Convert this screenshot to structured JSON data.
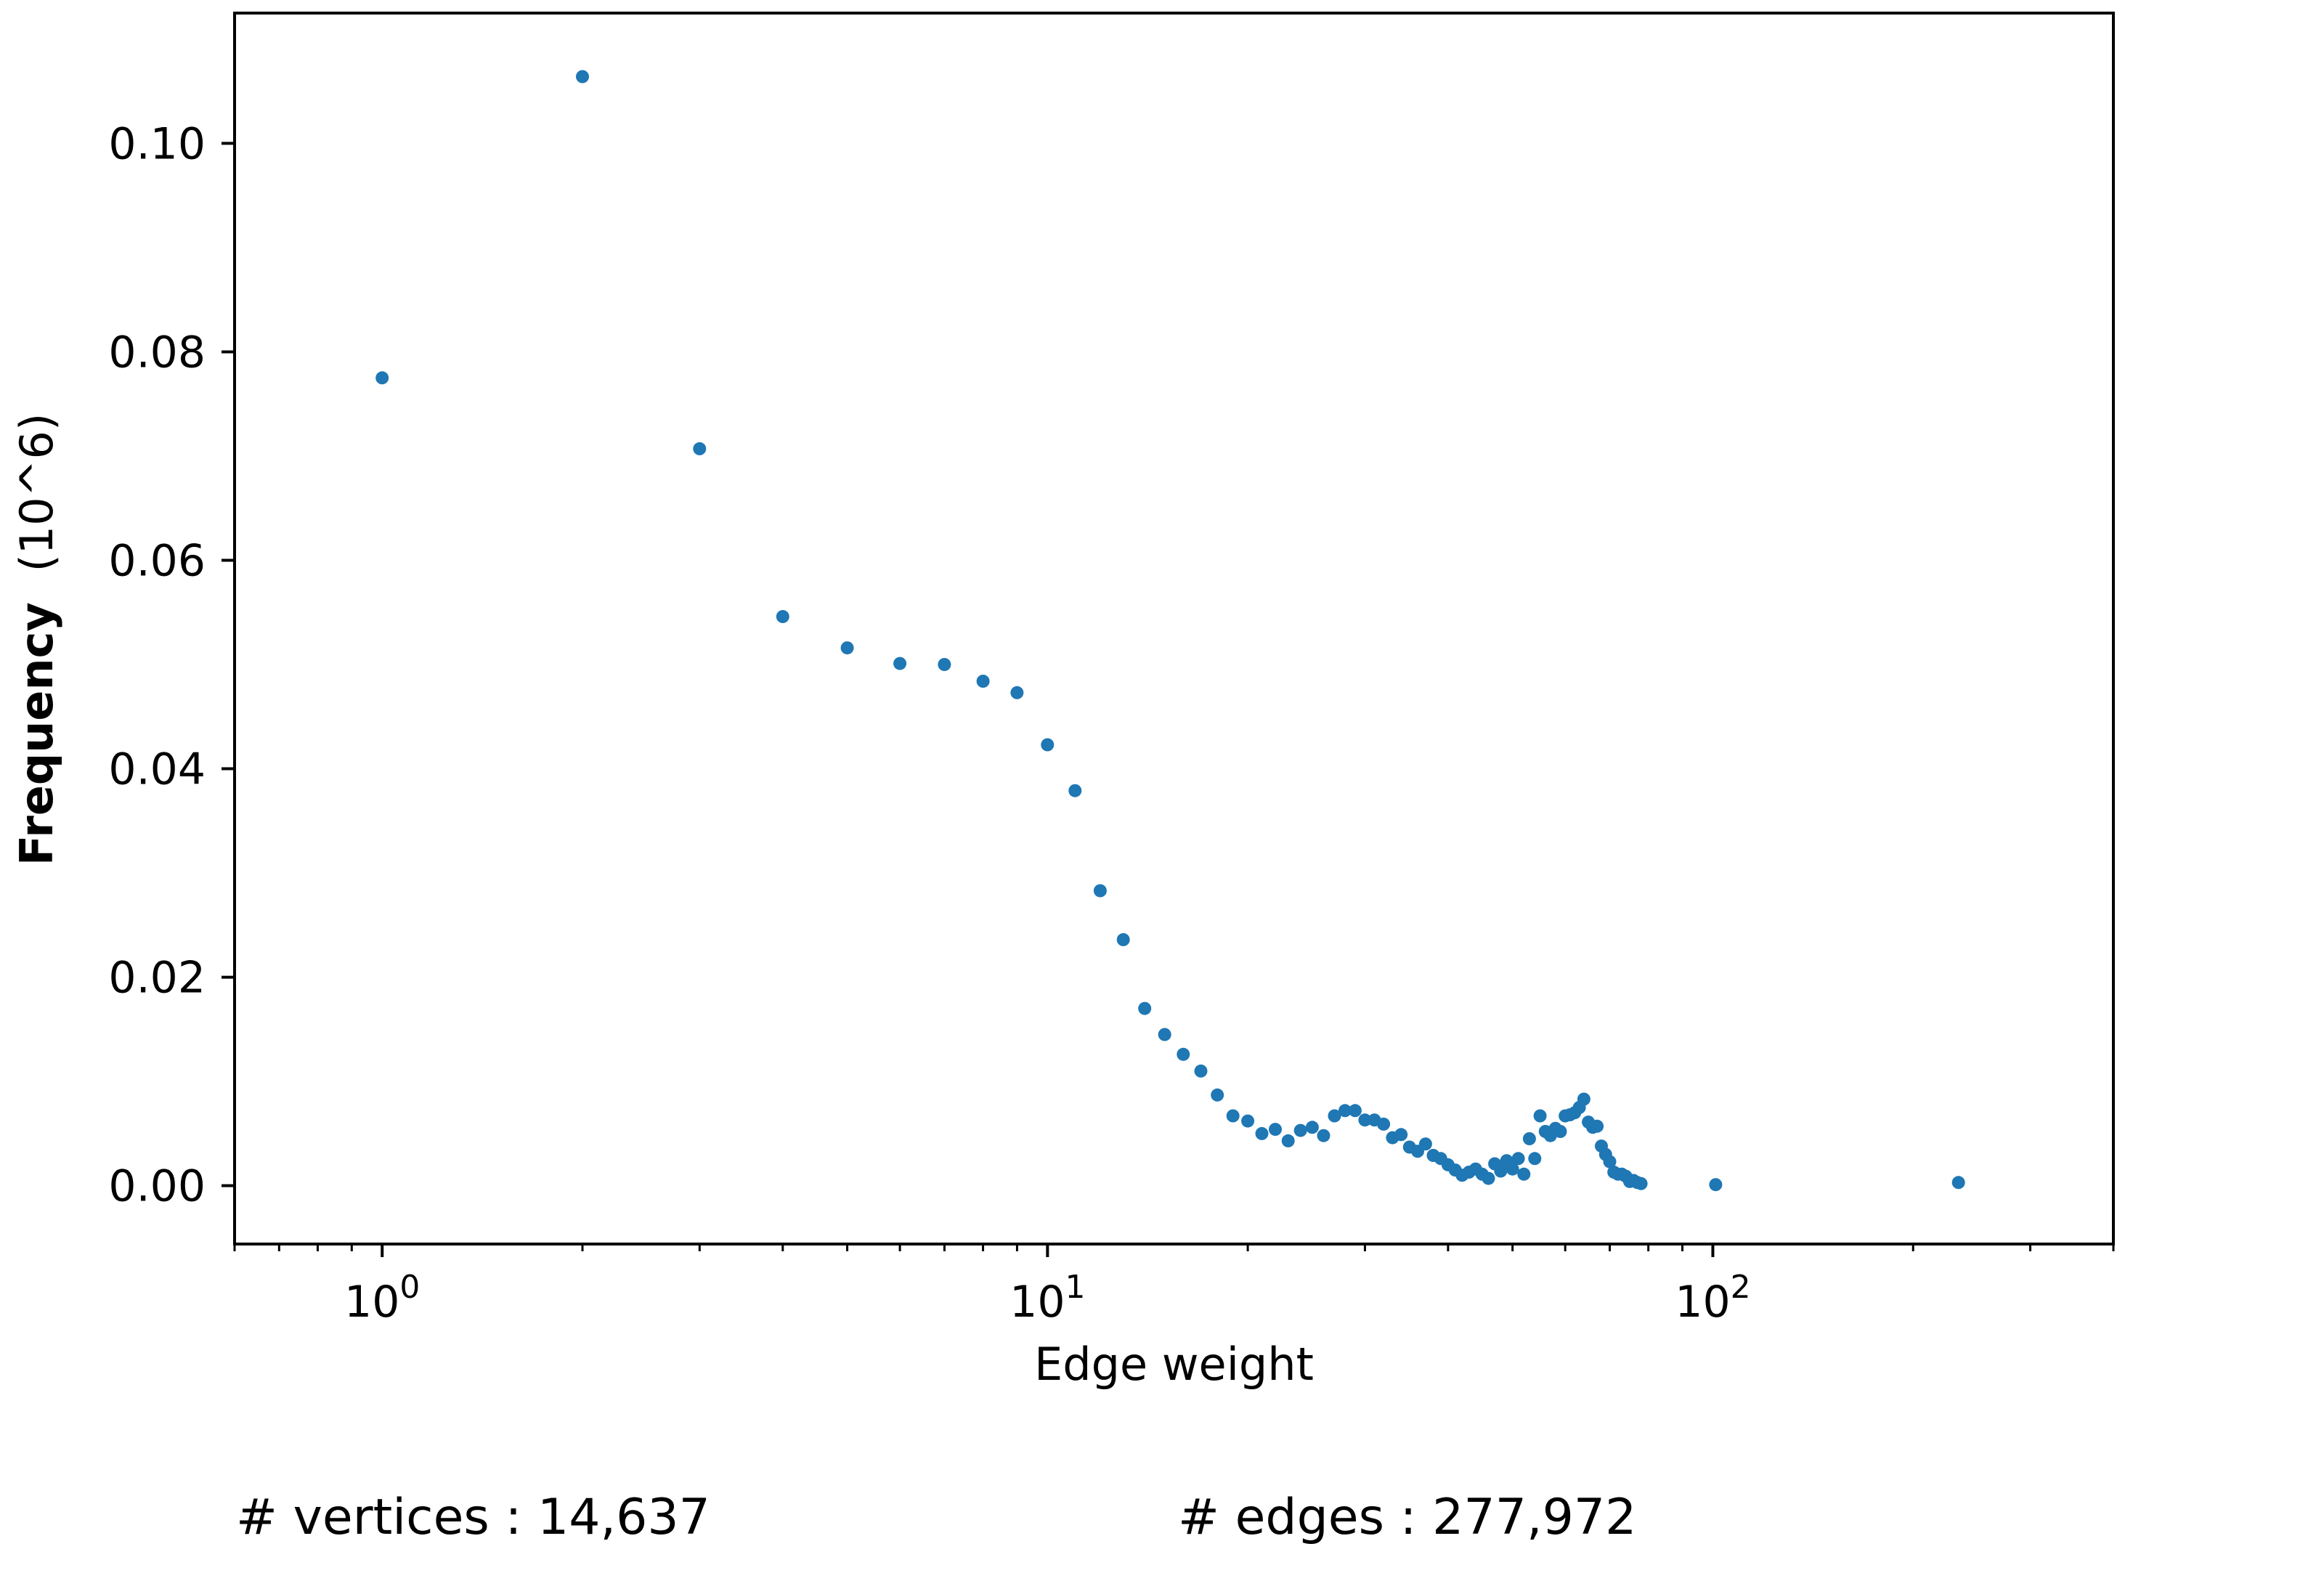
{
  "chart_data": {
    "type": "scatter",
    "title": "",
    "xlabel": "Edge weight",
    "ylabel": "Frequency",
    "ylabel_unit": "(10^6)",
    "x_scale": "log",
    "xlim": [
      0.6,
      400
    ],
    "ylim": [
      -0.0056,
      0.1125
    ],
    "y_ticks": [
      0.0,
      0.02,
      0.04,
      0.06,
      0.08,
      0.1
    ],
    "y_tick_labels": [
      "0.00",
      "0.02",
      "0.04",
      "0.06",
      "0.08",
      "0.10"
    ],
    "x_ticks": [
      1,
      10,
      100
    ],
    "x_tick_labels": [
      {
        "base": "10",
        "exp": "0"
      },
      {
        "base": "10",
        "exp": "1"
      },
      {
        "base": "10",
        "exp": "2"
      }
    ],
    "grid": false,
    "marker_color": "#1f77b4",
    "series": [
      {
        "x": [
          1,
          2,
          3,
          4,
          5,
          6,
          7,
          8,
          9,
          10,
          11,
          12,
          13,
          14,
          15,
          16,
          17,
          18,
          19,
          20,
          21,
          22,
          23,
          24,
          25,
          26,
          27,
          28,
          29,
          30,
          31,
          32,
          33,
          34,
          35,
          36,
          37,
          38,
          39,
          40,
          41,
          42,
          43,
          44,
          45,
          46,
          47,
          48,
          49,
          50,
          51,
          52,
          53,
          54,
          55,
          56,
          57,
          58,
          59,
          60,
          61,
          62,
          63,
          64,
          65,
          66,
          67,
          68,
          69,
          70,
          71,
          72,
          73,
          74,
          75,
          76,
          77,
          78,
          101,
          234
        ],
        "y": [
          0.0775,
          0.1064,
          0.0707,
          0.0546,
          0.0516,
          0.0501,
          0.05,
          0.0484,
          0.0473,
          0.0423,
          0.0379,
          0.0283,
          0.0236,
          0.017,
          0.0145,
          0.0126,
          0.011,
          0.0087,
          0.0067,
          0.0062,
          0.005,
          0.0054,
          0.0043,
          0.0053,
          0.0056,
          0.0048,
          0.0067,
          0.0072,
          0.0072,
          0.0063,
          0.0063,
          0.0059,
          0.0046,
          0.0049,
          0.0037,
          0.0033,
          0.004,
          0.0029,
          0.0026,
          0.002,
          0.0015,
          0.001,
          0.0013,
          0.0016,
          0.0011,
          0.0007,
          0.0021,
          0.0014,
          0.0024,
          0.0016,
          0.0026,
          0.0011,
          0.0045,
          0.0026,
          0.0067,
          0.0052,
          0.0048,
          0.0055,
          0.0052,
          0.0067,
          0.0068,
          0.007,
          0.0075,
          0.0083,
          0.0061,
          0.0056,
          0.0057,
          0.0038,
          0.003,
          0.0023,
          0.0013,
          0.0011,
          0.0011,
          0.0009,
          0.0004,
          0.0005,
          0.0003,
          0.0002,
          0.0001,
          0.0003
        ]
      }
    ]
  },
  "stats": {
    "vertices": "# vertices : 14,637",
    "edges": "# edges : 277,972"
  }
}
